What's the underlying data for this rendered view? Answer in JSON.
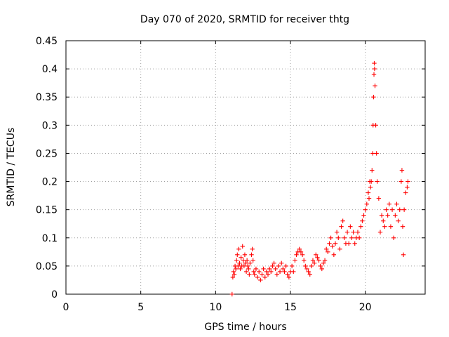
{
  "chart_data": {
    "type": "scatter",
    "title": "Day 070 of 2020, SRMTID for receiver thtg",
    "xlabel": "GPS time / hours",
    "ylabel": "SRMTID / TECUs",
    "xlim": [
      0,
      24
    ],
    "ylim": [
      0,
      0.45
    ],
    "xticks": [
      0,
      5,
      10,
      15,
      20
    ],
    "xtick_labels": [
      "0",
      "5",
      "10",
      "15",
      "20"
    ],
    "yticks": [
      0,
      0.05,
      0.1,
      0.15,
      0.2,
      0.25,
      0.3,
      0.35,
      0.4,
      0.45
    ],
    "ytick_labels": [
      "0",
      "0.05",
      "0.1",
      "0.15",
      "0.2",
      "0.25",
      "0.3",
      "0.35",
      "0.4",
      "0.45"
    ],
    "grid": true,
    "legend": "none",
    "marker": "plus",
    "color": "#ff0000",
    "series": [
      {
        "name": "SRMTID",
        "points": [
          [
            11.1,
            0.0
          ],
          [
            11.15,
            0.03
          ],
          [
            11.2,
            0.04
          ],
          [
            11.25,
            0.035
          ],
          [
            11.3,
            0.05
          ],
          [
            11.35,
            0.045
          ],
          [
            11.4,
            0.06
          ],
          [
            11.45,
            0.07
          ],
          [
            11.5,
            0.05
          ],
          [
            11.55,
            0.08
          ],
          [
            11.6,
            0.055
          ],
          [
            11.65,
            0.045
          ],
          [
            11.7,
            0.065
          ],
          [
            11.75,
            0.05
          ],
          [
            11.8,
            0.085
          ],
          [
            11.85,
            0.06
          ],
          [
            11.9,
            0.05
          ],
          [
            11.95,
            0.07
          ],
          [
            12.0,
            0.055
          ],
          [
            12.05,
            0.04
          ],
          [
            12.1,
            0.06
          ],
          [
            12.15,
            0.05
          ],
          [
            12.2,
            0.045
          ],
          [
            12.25,
            0.035
          ],
          [
            12.3,
            0.055
          ],
          [
            12.4,
            0.07
          ],
          [
            12.45,
            0.08
          ],
          [
            12.5,
            0.06
          ],
          [
            12.55,
            0.04
          ],
          [
            12.6,
            0.035
          ],
          [
            12.7,
            0.045
          ],
          [
            12.8,
            0.03
          ],
          [
            12.9,
            0.04
          ],
          [
            13.0,
            0.025
          ],
          [
            13.1,
            0.035
          ],
          [
            13.2,
            0.045
          ],
          [
            13.3,
            0.03
          ],
          [
            13.4,
            0.04
          ],
          [
            13.5,
            0.035
          ],
          [
            13.6,
            0.045
          ],
          [
            13.7,
            0.04
          ],
          [
            13.8,
            0.05
          ],
          [
            13.9,
            0.055
          ],
          [
            14.0,
            0.045
          ],
          [
            14.1,
            0.035
          ],
          [
            14.2,
            0.05
          ],
          [
            14.3,
            0.04
          ],
          [
            14.4,
            0.055
          ],
          [
            14.5,
            0.045
          ],
          [
            14.6,
            0.04
          ],
          [
            14.7,
            0.05
          ],
          [
            14.8,
            0.035
          ],
          [
            14.9,
            0.03
          ],
          [
            15.0,
            0.04
          ],
          [
            15.1,
            0.05
          ],
          [
            15.2,
            0.04
          ],
          [
            15.3,
            0.06
          ],
          [
            15.4,
            0.07
          ],
          [
            15.5,
            0.075
          ],
          [
            15.6,
            0.08
          ],
          [
            15.7,
            0.075
          ],
          [
            15.8,
            0.07
          ],
          [
            15.9,
            0.06
          ],
          [
            16.0,
            0.05
          ],
          [
            16.1,
            0.045
          ],
          [
            16.2,
            0.04
          ],
          [
            16.3,
            0.035
          ],
          [
            16.4,
            0.05
          ],
          [
            16.5,
            0.06
          ],
          [
            16.6,
            0.055
          ],
          [
            16.7,
            0.07
          ],
          [
            16.8,
            0.065
          ],
          [
            16.9,
            0.06
          ],
          [
            17.0,
            0.05
          ],
          [
            17.1,
            0.045
          ],
          [
            17.2,
            0.055
          ],
          [
            17.3,
            0.06
          ],
          [
            17.4,
            0.08
          ],
          [
            17.5,
            0.075
          ],
          [
            17.6,
            0.09
          ],
          [
            17.7,
            0.1
          ],
          [
            17.8,
            0.085
          ],
          [
            17.9,
            0.07
          ],
          [
            18.0,
            0.09
          ],
          [
            18.1,
            0.11
          ],
          [
            18.2,
            0.1
          ],
          [
            18.3,
            0.08
          ],
          [
            18.4,
            0.12
          ],
          [
            18.5,
            0.13
          ],
          [
            18.6,
            0.1
          ],
          [
            18.7,
            0.09
          ],
          [
            18.8,
            0.11
          ],
          [
            18.9,
            0.09
          ],
          [
            19.0,
            0.12
          ],
          [
            19.1,
            0.1
          ],
          [
            19.2,
            0.11
          ],
          [
            19.3,
            0.09
          ],
          [
            19.4,
            0.1
          ],
          [
            19.5,
            0.11
          ],
          [
            19.6,
            0.1
          ],
          [
            19.7,
            0.12
          ],
          [
            19.8,
            0.13
          ],
          [
            19.9,
            0.14
          ],
          [
            20.0,
            0.15
          ],
          [
            20.1,
            0.16
          ],
          [
            20.2,
            0.18
          ],
          [
            20.25,
            0.17
          ],
          [
            20.3,
            0.2
          ],
          [
            20.35,
            0.19
          ],
          [
            20.4,
            0.2
          ],
          [
            20.45,
            0.22
          ],
          [
            20.5,
            0.25
          ],
          [
            20.52,
            0.3
          ],
          [
            20.55,
            0.35
          ],
          [
            20.58,
            0.39
          ],
          [
            20.6,
            0.41
          ],
          [
            20.62,
            0.4
          ],
          [
            20.65,
            0.37
          ],
          [
            20.7,
            0.3
          ],
          [
            20.75,
            0.25
          ],
          [
            20.8,
            0.2
          ],
          [
            20.9,
            0.17
          ],
          [
            21.0,
            0.11
          ],
          [
            21.1,
            0.14
          ],
          [
            21.2,
            0.13
          ],
          [
            21.3,
            0.12
          ],
          [
            21.4,
            0.15
          ],
          [
            21.5,
            0.14
          ],
          [
            21.6,
            0.16
          ],
          [
            21.7,
            0.12
          ],
          [
            21.8,
            0.15
          ],
          [
            21.9,
            0.1
          ],
          [
            22.0,
            0.14
          ],
          [
            22.1,
            0.16
          ],
          [
            22.2,
            0.13
          ],
          [
            22.3,
            0.15
          ],
          [
            22.4,
            0.2
          ],
          [
            22.45,
            0.22
          ],
          [
            22.5,
            0.12
          ],
          [
            22.55,
            0.07
          ],
          [
            22.6,
            0.15
          ],
          [
            22.7,
            0.18
          ],
          [
            22.8,
            0.19
          ],
          [
            22.85,
            0.2
          ]
        ]
      }
    ]
  }
}
